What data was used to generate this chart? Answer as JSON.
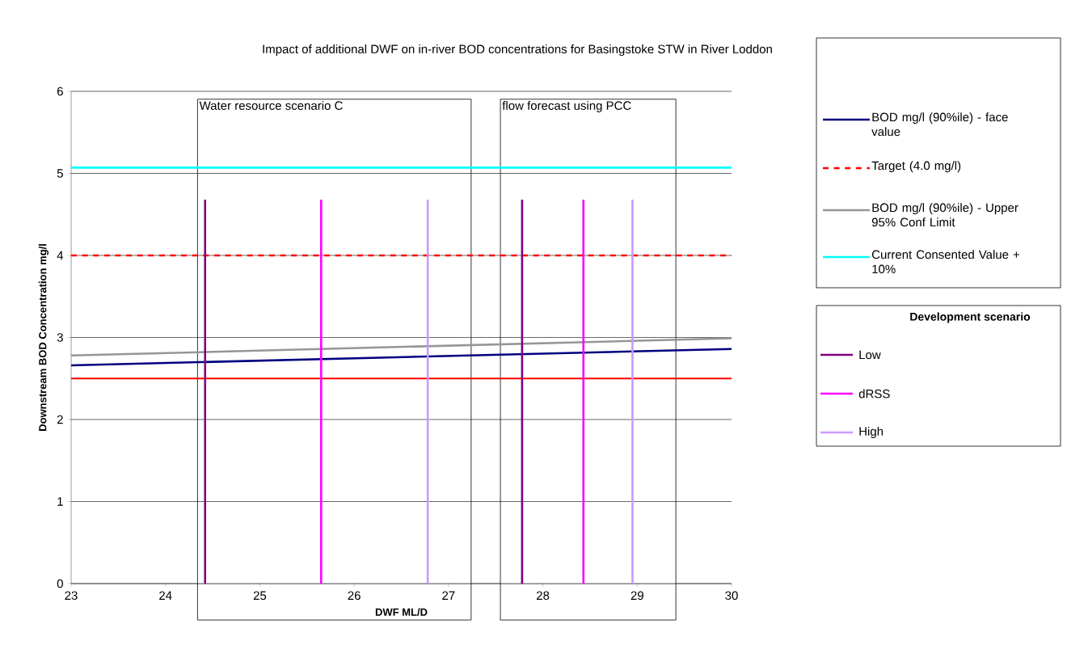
{
  "chart_data": {
    "type": "line",
    "title": "Impact of additional DWF on in-river BOD concentrations for Basingstoke STW in River Loddon",
    "xlabel": "DWF ML/D",
    "ylabel": "Downstream BOD Concentration mg/l",
    "legend_title": "Development scenario",
    "x": [
      23,
      30
    ],
    "xlim": [
      23,
      30
    ],
    "ylim": [
      0,
      6
    ],
    "xticks": [
      23,
      24,
      25,
      26,
      27,
      28,
      29,
      30
    ],
    "yticks": [
      0,
      1,
      2,
      3,
      4,
      5,
      6
    ],
    "grid": "y",
    "legend": "right",
    "marker": "none",
    "series": [
      {
        "name": "BOD mg/l (90%ile) - face value",
        "color": "#000080",
        "values": [
          2.66,
          2.86
        ]
      },
      {
        "name": "Target (4.0 mg/l)",
        "color": "#ff0000",
        "values": [
          4.0,
          4.0
        ],
        "line_style": "dashed"
      },
      {
        "name": "BOD mg/l (90%ile) - Upper 95% Conf Limit",
        "color": "#969696",
        "values": [
          2.78,
          2.99
        ]
      },
      {
        "name": "Current Consented Value + 10%",
        "color": "#00ffff",
        "values": [
          5.07,
          5.07
        ]
      },
      {
        "name": "Low",
        "color": "#800080",
        "x": [
          24.42,
          24.42
        ],
        "values": [
          0,
          4.68
        ]
      },
      {
        "color": "#800080",
        "x": [
          27.78,
          27.78
        ],
        "values": [
          0,
          4.68
        ]
      },
      {
        "name": "dRSS",
        "color": "#ff00ff",
        "x": [
          25.65,
          25.65
        ],
        "values": [
          0,
          4.68
        ]
      },
      {
        "color": "#ff00ff",
        "x": [
          28.43,
          28.43
        ],
        "values": [
          0,
          4.68
        ]
      },
      {
        "name": "High",
        "color": "#cc99ff",
        "x": [
          26.78,
          26.78
        ],
        "values": [
          0,
          4.68
        ]
      },
      {
        "color": "#cc99ff",
        "x": [
          28.95,
          28.95
        ],
        "values": [
          0,
          4.68
        ]
      }
    ],
    "ref_lines": [
      {
        "axis": "y",
        "value": 2.5,
        "color": "#ff0000"
      }
    ],
    "bands": [
      {
        "axis": "x",
        "from": 24.34,
        "to": 27.24,
        "label": "Water resource scenario C",
        "color": "#ffffff"
      },
      {
        "axis": "x",
        "from": 27.55,
        "to": 29.41,
        "label": "flow forecast using PCC",
        "color": "#ffffff"
      }
    ]
  }
}
